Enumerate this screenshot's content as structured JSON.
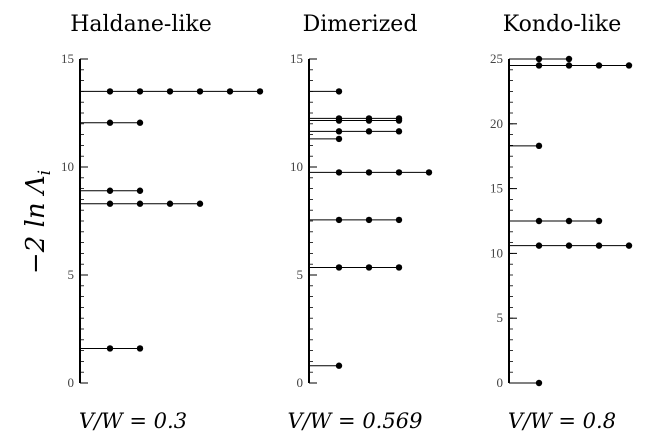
{
  "ylabel": "−2 ln Λ",
  "ylabel_sub": "i",
  "chart_data": [
    {
      "type": "scatter",
      "title": "Haldane-like",
      "subtitle": "V/W = 0.3",
      "ylim": [
        0,
        15
      ],
      "yticks": [
        0,
        5,
        10,
        15
      ],
      "levels": [
        {
          "y": 1.6,
          "deg": 2
        },
        {
          "y": 8.3,
          "deg": 4
        },
        {
          "y": 8.9,
          "deg": 2
        },
        {
          "y": 12.05,
          "deg": 2
        },
        {
          "y": 13.5,
          "deg": 6
        }
      ]
    },
    {
      "type": "scatter",
      "title": "Dimerized",
      "subtitle": "V/W = 0.569",
      "ylim": [
        0,
        15
      ],
      "yticks": [
        0,
        5,
        10,
        15
      ],
      "levels": [
        {
          "y": 0.8,
          "deg": 1
        },
        {
          "y": 5.35,
          "deg": 3
        },
        {
          "y": 7.55,
          "deg": 3
        },
        {
          "y": 9.75,
          "deg": 4
        },
        {
          "y": 11.3,
          "deg": 1
        },
        {
          "y": 11.65,
          "deg": 3
        },
        {
          "y": 12.15,
          "deg": 3
        },
        {
          "y": 12.25,
          "deg": 3
        },
        {
          "y": 13.5,
          "deg": 1
        }
      ]
    },
    {
      "type": "scatter",
      "title": "Kondo-like",
      "subtitle": "V/W = 0.8",
      "ylim": [
        0,
        25
      ],
      "yticks": [
        0,
        5,
        10,
        15,
        20,
        25
      ],
      "levels": [
        {
          "y": 0.0,
          "deg": 1
        },
        {
          "y": 10.6,
          "deg": 4
        },
        {
          "y": 12.5,
          "deg": 3
        },
        {
          "y": 18.3,
          "deg": 1
        },
        {
          "y": 24.5,
          "deg": 4
        },
        {
          "y": 25.0,
          "deg": 2
        }
      ]
    }
  ]
}
